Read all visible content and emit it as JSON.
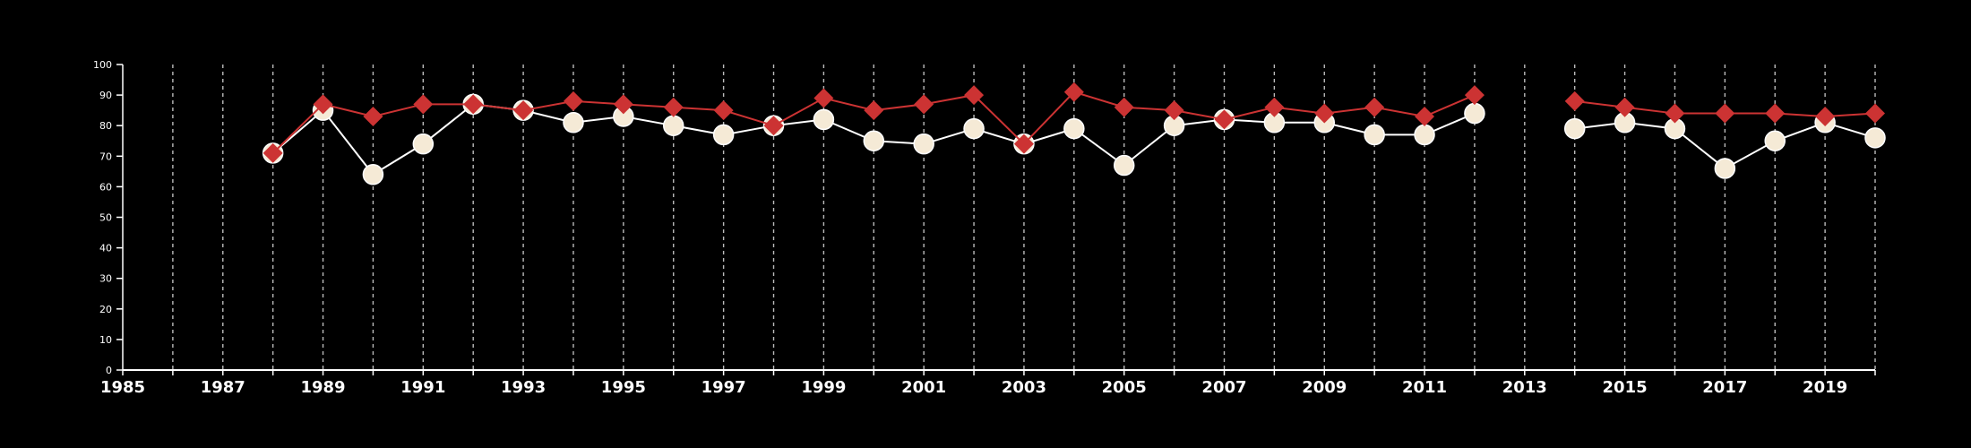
{
  "chart_data": {
    "type": "line",
    "title": "",
    "xlabel": "",
    "ylabel": "",
    "xlim": [
      1985,
      2020
    ],
    "ylim": [
      0,
      100
    ],
    "grid": "vertical dashed lines at every year",
    "legend": "none",
    "x_tick_labels": [
      "1985",
      "1987",
      "1989",
      "1991",
      "1993",
      "1995",
      "1997",
      "1999",
      "2001",
      "2003",
      "2005",
      "2007",
      "2009",
      "2011",
      "2013",
      "2015",
      "2017",
      "2019"
    ],
    "y_tick_labels": [
      "0",
      "10",
      "20",
      "30",
      "40",
      "50",
      "60",
      "70",
      "80",
      "90",
      "100"
    ],
    "x": [
      1988,
      1989,
      1990,
      1991,
      1992,
      1993,
      1994,
      1995,
      1996,
      1997,
      1998,
      1999,
      2000,
      2001,
      2002,
      2003,
      2004,
      2005,
      2006,
      2007,
      2008,
      2009,
      2010,
      2011,
      2012,
      2013,
      2014,
      2015,
      2016,
      2017,
      2018,
      2019,
      2020
    ],
    "series": [
      {
        "marker": "circle",
        "color": "#f5ead6",
        "line_color": "#ffffff",
        "values": [
          71,
          85,
          64,
          74,
          87,
          85,
          81,
          83,
          80,
          77,
          80,
          82,
          75,
          74,
          79,
          74,
          79,
          67,
          80,
          82,
          81,
          81,
          77,
          77,
          84,
          null,
          79,
          81,
          79,
          66,
          75,
          81,
          76
        ]
      },
      {
        "marker": "diamond",
        "color": "#cc3333",
        "line_color": "#cc3333",
        "values": [
          71,
          87,
          83,
          87,
          87,
          85,
          88,
          87,
          86,
          85,
          80,
          89,
          85,
          87,
          90,
          74,
          91,
          86,
          85,
          82,
          86,
          84,
          86,
          83,
          90,
          null,
          88,
          86,
          84,
          84,
          84,
          83,
          84
        ]
      }
    ]
  }
}
